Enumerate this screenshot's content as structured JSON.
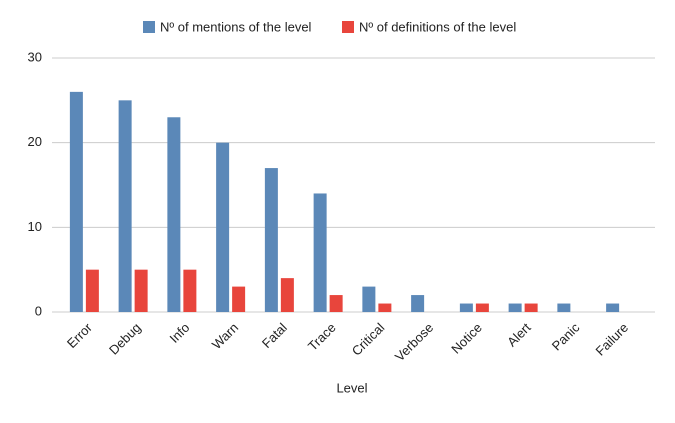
{
  "chart_data": {
    "type": "bar",
    "x_label": "Level",
    "categories": [
      "Error",
      "Debug",
      "Info",
      "Warn",
      "Fatal",
      "Trace",
      "Critical",
      "Verbose",
      "Notice",
      "Alert",
      "Panic",
      "Failure"
    ],
    "series": [
      {
        "name": "Nº of mentions of the level",
        "color": "#5b88b8",
        "values": [
          26,
          25,
          23,
          20,
          17,
          14,
          3,
          2,
          1,
          1,
          1,
          1
        ]
      },
      {
        "name": "Nº of definitions of the level",
        "color": "#e8453c",
        "values": [
          5,
          5,
          5,
          3,
          4,
          2,
          1,
          0,
          1,
          1,
          0,
          0
        ]
      }
    ],
    "ylim": [
      0,
      30
    ],
    "yticks": [
      0,
      10,
      20,
      30
    ],
    "grid": true,
    "legend": "top"
  }
}
